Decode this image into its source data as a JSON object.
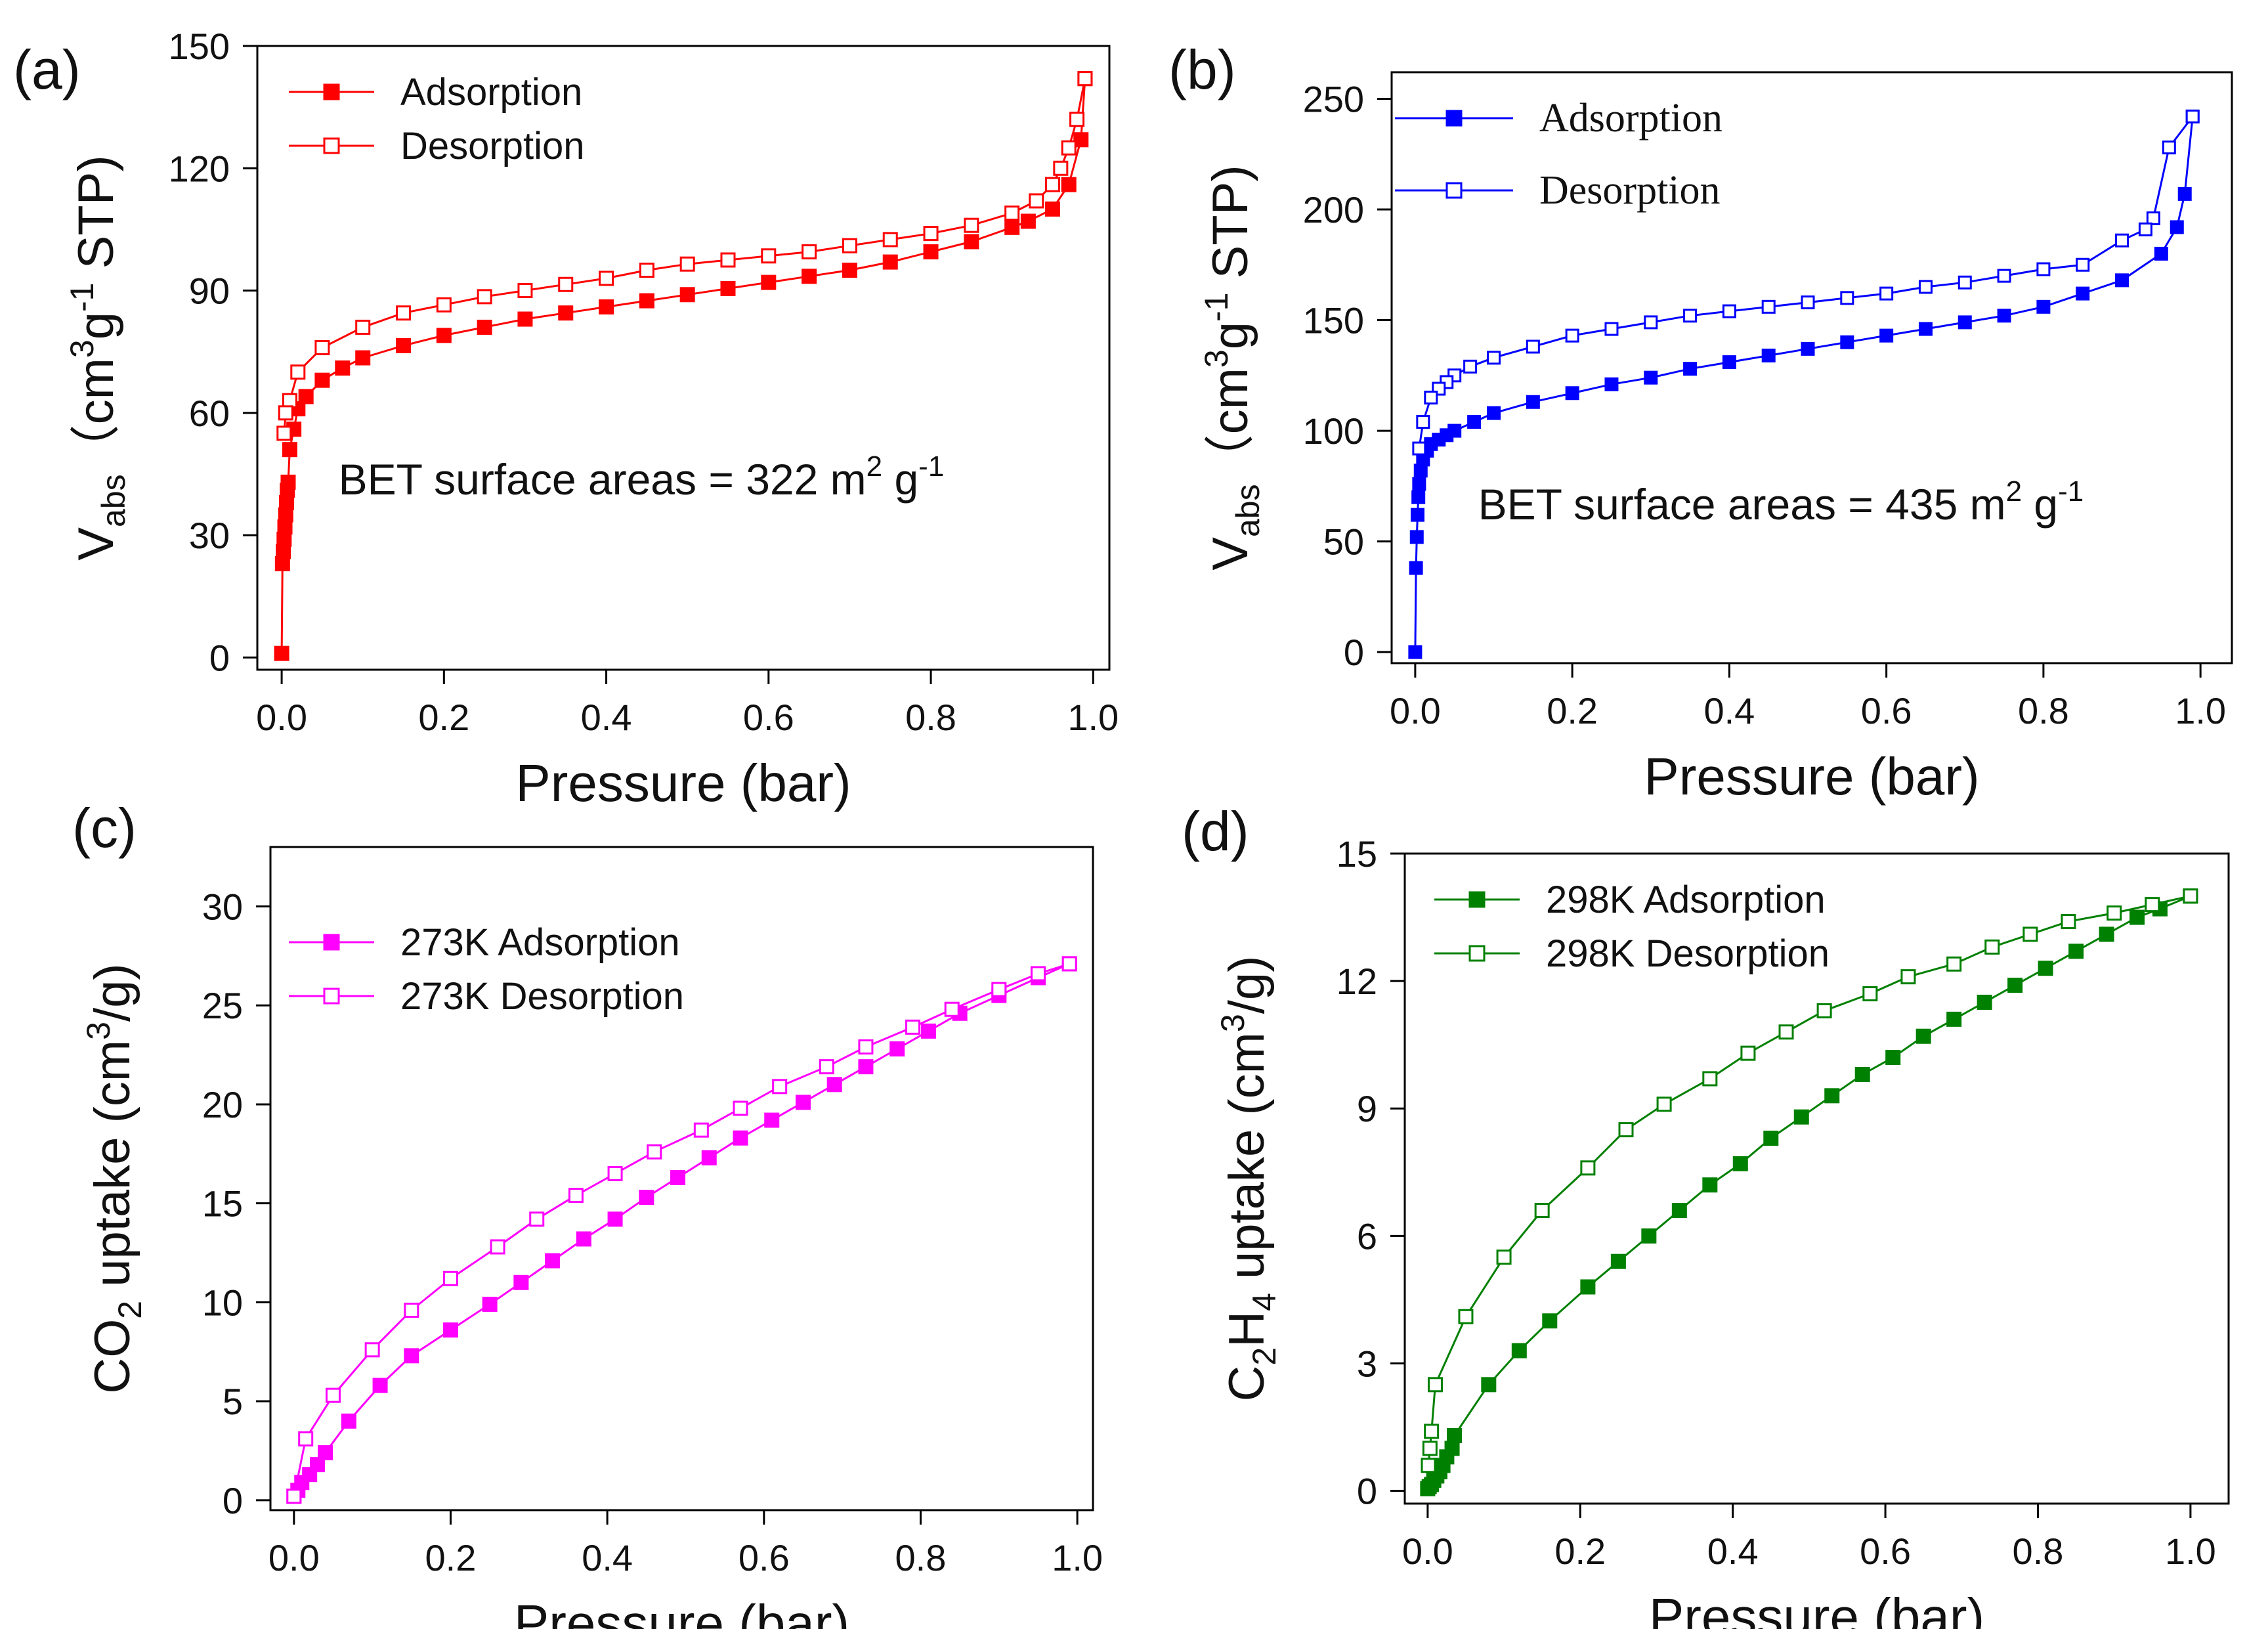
{
  "figure_title": "Gas adsorption isotherms",
  "chart_data": [
    {
      "id": "a",
      "panel_label": "(a)",
      "type": "line",
      "color": "#ff0000",
      "xlabel": "Pressure (bar)",
      "ylabel": "V",
      "ylabel_sub": "abs",
      "ylabel_unit_pre": "（cm",
      "ylabel_unit_sup1": "3",
      "ylabel_unit_mid": "g",
      "ylabel_unit_sup2": "-1",
      "ylabel_unit_post": " STP)",
      "xlim": [
        -0.03,
        1.02
      ],
      "ylim": [
        -3,
        150
      ],
      "xticks": [
        0.0,
        0.2,
        0.4,
        0.6,
        0.8,
        1.0
      ],
      "xtick_labels": [
        "0.0",
        "0.2",
        "0.4",
        "0.6",
        "0.8",
        "1.0"
      ],
      "yticks": [
        0,
        30,
        60,
        90,
        120,
        150
      ],
      "ytick_labels": [
        "0",
        "30",
        "60",
        "90",
        "120",
        "150"
      ],
      "annotation": {
        "text": "BET surface areas = 322 m",
        "sup": "2",
        "mid": " g",
        "sup2": "-1",
        "x": 0.07,
        "y": 40
      },
      "legend_font": "sans",
      "legend_position": "top-left",
      "series": [
        {
          "name": "Adsorption",
          "marker": "filled-square",
          "x": [
            0.0,
            0.001,
            0.002,
            0.003,
            0.004,
            0.005,
            0.006,
            0.007,
            0.008,
            0.01,
            0.015,
            0.02,
            0.03,
            0.05,
            0.075,
            0.1,
            0.15,
            0.2,
            0.25,
            0.3,
            0.35,
            0.4,
            0.45,
            0.5,
            0.55,
            0.6,
            0.65,
            0.7,
            0.75,
            0.8,
            0.85,
            0.9,
            0.92,
            0.95,
            0.97,
            0.985,
            0.99
          ],
          "y": [
            1,
            23,
            26,
            29,
            32,
            35,
            38,
            41,
            43,
            51,
            56,
            61,
            64,
            68,
            71,
            73.5,
            76.5,
            79,
            81,
            83,
            84.5,
            86,
            87.5,
            89,
            90.5,
            92,
            93.5,
            95,
            97,
            99.5,
            102,
            105.5,
            107,
            110,
            116,
            127,
            142
          ]
        },
        {
          "name": "Desorption",
          "marker": "open-square",
          "x": [
            0.99,
            0.98,
            0.97,
            0.96,
            0.95,
            0.93,
            0.9,
            0.85,
            0.8,
            0.75,
            0.7,
            0.65,
            0.6,
            0.55,
            0.5,
            0.45,
            0.4,
            0.35,
            0.3,
            0.25,
            0.2,
            0.15,
            0.1,
            0.05,
            0.02,
            0.01,
            0.005,
            0.003
          ],
          "y": [
            142,
            132,
            125,
            120,
            116,
            112,
            109,
            106,
            104,
            102.5,
            101,
            99.5,
            98.5,
            97.5,
            96.5,
            95,
            93,
            91.5,
            90,
            88.5,
            86.5,
            84.5,
            81,
            76,
            70,
            63,
            60,
            55
          ]
        }
      ]
    },
    {
      "id": "b",
      "panel_label": "(b)",
      "type": "line",
      "color": "#0000ff",
      "xlabel": "Pressure (bar)",
      "ylabel": "V",
      "ylabel_sub": "abs",
      "ylabel_unit_pre": "（cm",
      "ylabel_unit_sup1": "3",
      "ylabel_unit_mid": "g",
      "ylabel_unit_sup2": "-1",
      "ylabel_unit_post": " STP)",
      "xlim": [
        -0.03,
        1.04
      ],
      "ylim": [
        -5,
        262
      ],
      "xticks": [
        0.0,
        0.2,
        0.4,
        0.6,
        0.8,
        1.0
      ],
      "xtick_labels": [
        "0.0",
        "0.2",
        "0.4",
        "0.6",
        "0.8",
        "1.0"
      ],
      "yticks": [
        0,
        50,
        100,
        150,
        200,
        250
      ],
      "ytick_labels": [
        "0",
        "50",
        "100",
        "150",
        "200",
        "250"
      ],
      "annotation": {
        "text": "BET surface areas = 435 m",
        "sup": "2",
        "mid": " g",
        "sup2": "-1",
        "x": 0.08,
        "y": 60
      },
      "legend_font": "serif",
      "legend_position": "top-left",
      "series": [
        {
          "name": "Adsorption",
          "marker": "filled-square",
          "x": [
            0.0,
            0.001,
            0.002,
            0.003,
            0.004,
            0.005,
            0.007,
            0.01,
            0.015,
            0.02,
            0.03,
            0.04,
            0.05,
            0.075,
            0.1,
            0.15,
            0.2,
            0.25,
            0.3,
            0.35,
            0.4,
            0.45,
            0.5,
            0.55,
            0.6,
            0.65,
            0.7,
            0.75,
            0.8,
            0.85,
            0.9,
            0.95,
            0.97,
            0.98,
            0.99
          ],
          "y": [
            0,
            38,
            52,
            62,
            70,
            76,
            82,
            87,
            91,
            94,
            96,
            98,
            100,
            104,
            108,
            113,
            117,
            121,
            124,
            128,
            131,
            134,
            137,
            140,
            143,
            146,
            149,
            152,
            156,
            162,
            168,
            180,
            192,
            207,
            242
          ]
        },
        {
          "name": "Desorption",
          "marker": "open-square",
          "x": [
            0.99,
            0.96,
            0.94,
            0.93,
            0.9,
            0.85,
            0.8,
            0.75,
            0.7,
            0.65,
            0.6,
            0.55,
            0.5,
            0.45,
            0.4,
            0.35,
            0.3,
            0.25,
            0.2,
            0.15,
            0.1,
            0.07,
            0.05,
            0.04,
            0.03,
            0.02,
            0.01,
            0.005
          ],
          "y": [
            242,
            228,
            196,
            191,
            186,
            175,
            173,
            170,
            167,
            165,
            162,
            160,
            158,
            156,
            154,
            152,
            149,
            146,
            143,
            138,
            133,
            129,
            125,
            122,
            119,
            115,
            104,
            92
          ]
        }
      ]
    },
    {
      "id": "c",
      "panel_label": "(c)",
      "type": "line",
      "color": "#ff00ff",
      "xlabel": "Pressure (bar)",
      "ylabel": "CO",
      "ylabel_sub": "2",
      "ylabel_unit_pre": " uptake  (cm",
      "ylabel_unit_sup1": "3",
      "ylabel_unit_mid": "/g)",
      "ylabel_unit_sup2": "",
      "ylabel_unit_post": "",
      "xlim": [
        -0.03,
        1.02
      ],
      "ylim": [
        -0.5,
        33
      ],
      "xticks": [
        0.0,
        0.2,
        0.4,
        0.6,
        0.8,
        1.0
      ],
      "xtick_labels": [
        "0.0",
        "0.2",
        "0.4",
        "0.6",
        "0.8",
        "1.0"
      ],
      "yticks": [
        0,
        5,
        10,
        15,
        20,
        25,
        30
      ],
      "ytick_labels": [
        "0",
        "5",
        "10",
        "15",
        "20",
        "25",
        "30"
      ],
      "annotation": null,
      "legend_font": "sans",
      "legend_position": "top-left",
      "series": [
        {
          "name": "273K Adsorption",
          "marker": "filled-square",
          "x": [
            0.0,
            0.005,
            0.01,
            0.02,
            0.03,
            0.04,
            0.07,
            0.11,
            0.15,
            0.2,
            0.25,
            0.29,
            0.33,
            0.37,
            0.41,
            0.45,
            0.49,
            0.53,
            0.57,
            0.61,
            0.65,
            0.69,
            0.73,
            0.77,
            0.81,
            0.85,
            0.9,
            0.95,
            0.99
          ],
          "y": [
            0.2,
            0.5,
            0.9,
            1.3,
            1.8,
            2.4,
            4.0,
            5.8,
            7.3,
            8.6,
            9.9,
            11.0,
            12.1,
            13.2,
            14.2,
            15.3,
            16.3,
            17.3,
            18.3,
            19.2,
            20.1,
            21.0,
            21.9,
            22.8,
            23.7,
            24.6,
            25.5,
            26.4,
            27.1
          ]
        },
        {
          "name": "273K Desorption",
          "marker": "open-square",
          "x": [
            0.99,
            0.95,
            0.9,
            0.84,
            0.79,
            0.73,
            0.68,
            0.62,
            0.57,
            0.52,
            0.46,
            0.41,
            0.36,
            0.31,
            0.26,
            0.2,
            0.15,
            0.1,
            0.05,
            0.015,
            0.0
          ],
          "y": [
            27.1,
            26.6,
            25.8,
            24.8,
            23.9,
            22.9,
            21.9,
            20.9,
            19.8,
            18.7,
            17.6,
            16.5,
            15.4,
            14.2,
            12.8,
            11.2,
            9.6,
            7.6,
            5.3,
            3.1,
            0.2
          ]
        }
      ]
    },
    {
      "id": "d",
      "panel_label": "(d)",
      "type": "line",
      "color": "#008000",
      "xlabel": "Pressure (bar)",
      "ylabel": "C",
      "ylabel_sub": "2",
      "ylabel_mid": "H",
      "ylabel_sub2": "4",
      "ylabel_unit_pre": " uptake  (cm",
      "ylabel_unit_sup1": "3",
      "ylabel_unit_mid": "/g)",
      "ylabel_unit_sup2": "",
      "ylabel_unit_post": "",
      "xlim": [
        -0.03,
        1.05
      ],
      "ylim": [
        -0.3,
        15
      ],
      "xticks": [
        0.0,
        0.2,
        0.4,
        0.6,
        0.8,
        1.0
      ],
      "xtick_labels": [
        "0.0",
        "0.2",
        "0.4",
        "0.6",
        "0.8",
        "1.0"
      ],
      "yticks": [
        0,
        3,
        6,
        9,
        12,
        15
      ],
      "ytick_labels": [
        "0",
        "3",
        "6",
        "9",
        "12",
        "15"
      ],
      "annotation": null,
      "legend_font": "sans",
      "legend_position": "top-left",
      "series": [
        {
          "name": "298K Adsorption",
          "marker": "filled-square",
          "x": [
            0.0,
            0.002,
            0.005,
            0.008,
            0.012,
            0.016,
            0.02,
            0.025,
            0.032,
            0.035,
            0.08,
            0.12,
            0.16,
            0.21,
            0.25,
            0.29,
            0.33,
            0.37,
            0.41,
            0.45,
            0.49,
            0.53,
            0.57,
            0.61,
            0.65,
            0.69,
            0.73,
            0.77,
            0.81,
            0.85,
            0.89,
            0.93,
            0.96,
            1.0
          ],
          "y": [
            0.05,
            0.1,
            0.15,
            0.25,
            0.35,
            0.45,
            0.6,
            0.8,
            1.0,
            1.3,
            2.5,
            3.3,
            4.0,
            4.8,
            5.4,
            6.0,
            6.6,
            7.2,
            7.7,
            8.3,
            8.8,
            9.3,
            9.8,
            10.2,
            10.7,
            11.1,
            11.5,
            11.9,
            12.3,
            12.7,
            13.1,
            13.5,
            13.7,
            14.0
          ]
        },
        {
          "name": "298K Desorption",
          "marker": "open-square",
          "x": [
            1.0,
            0.95,
            0.9,
            0.84,
            0.79,
            0.74,
            0.69,
            0.63,
            0.58,
            0.52,
            0.47,
            0.42,
            0.37,
            0.31,
            0.26,
            0.21,
            0.15,
            0.1,
            0.05,
            0.01,
            0.005,
            0.003,
            0.001
          ],
          "y": [
            14.0,
            13.8,
            13.6,
            13.4,
            13.1,
            12.8,
            12.4,
            12.1,
            11.7,
            11.3,
            10.8,
            10.3,
            9.7,
            9.1,
            8.5,
            7.6,
            6.6,
            5.5,
            4.1,
            2.5,
            1.4,
            1.0,
            0.6
          ]
        }
      ]
    }
  ]
}
